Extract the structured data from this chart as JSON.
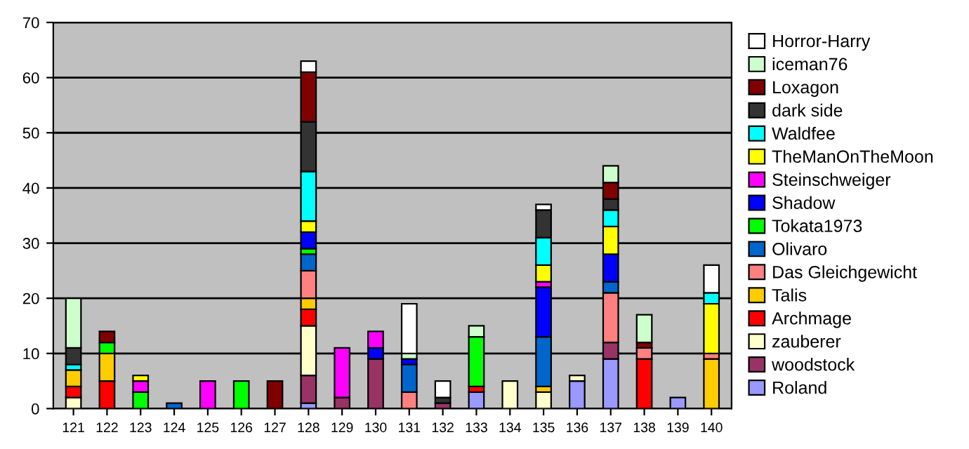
{
  "chart_data": {
    "type": "bar",
    "stacked": true,
    "grid": "y",
    "legend": "right",
    "categories": [
      "121",
      "122",
      "123",
      "124",
      "125",
      "126",
      "127",
      "128",
      "129",
      "130",
      "131",
      "132",
      "133",
      "134",
      "135",
      "136",
      "137",
      "138",
      "139",
      "140"
    ],
    "ylim": [
      0,
      70
    ],
    "yticks": [
      0,
      10,
      20,
      30,
      40,
      50,
      60,
      70
    ],
    "series": [
      {
        "name": "Roland",
        "color": "#9999ff",
        "values": [
          0,
          0,
          0,
          0,
          0,
          0,
          0,
          1,
          0,
          0,
          0,
          0,
          3,
          0,
          0,
          5,
          9,
          0,
          2,
          0
        ]
      },
      {
        "name": "woodstock",
        "color": "#993366",
        "values": [
          0,
          0,
          0,
          0,
          0,
          0,
          0,
          5,
          2,
          9,
          0,
          1,
          0,
          0,
          0,
          0,
          3,
          0,
          0,
          0
        ]
      },
      {
        "name": "zauberer",
        "color": "#ffffcc",
        "values": [
          2,
          0,
          0,
          0,
          0,
          0,
          0,
          9,
          0,
          0,
          0,
          0,
          0,
          5,
          3,
          1,
          0,
          0,
          0,
          0
        ]
      },
      {
        "name": "Archmage",
        "color": "#ff0000",
        "values": [
          2,
          5,
          0,
          0,
          0,
          0,
          0,
          3,
          0,
          0,
          0,
          0,
          1,
          0,
          0,
          0,
          0,
          9,
          0,
          0
        ]
      },
      {
        "name": "Talis",
        "color": "#ffcc00",
        "values": [
          3,
          5,
          0,
          0,
          0,
          0,
          0,
          2,
          0,
          0,
          0,
          0,
          0,
          0,
          1,
          0,
          0,
          0,
          0,
          9
        ]
      },
      {
        "name": "Das Gleichgewicht",
        "color": "#ff8080",
        "values": [
          0,
          0,
          0,
          0,
          0,
          0,
          0,
          5,
          0,
          0,
          3,
          0,
          0,
          0,
          0,
          0,
          9,
          2,
          0,
          1
        ]
      },
      {
        "name": "Olivaro",
        "color": "#0066cc",
        "values": [
          0,
          0,
          0,
          1,
          0,
          0,
          0,
          3,
          0,
          0,
          5,
          0,
          0,
          0,
          9,
          0,
          2,
          0,
          0,
          0
        ]
      },
      {
        "name": "Tokata1973",
        "color": "#00ff00",
        "values": [
          0,
          2,
          3,
          0,
          0,
          5,
          0,
          1,
          0,
          0,
          0,
          0,
          9,
          0,
          0,
          0,
          0,
          0,
          0,
          0
        ]
      },
      {
        "name": "Shadow",
        "color": "#0000ff",
        "values": [
          0,
          0,
          0,
          0,
          0,
          0,
          0,
          3,
          0,
          2,
          1,
          0,
          0,
          0,
          9,
          0,
          5,
          0,
          0,
          0
        ]
      },
      {
        "name": "Steinschweiger",
        "color": "#ff00ff",
        "values": [
          0,
          0,
          2,
          0,
          5,
          0,
          0,
          0,
          9,
          3,
          0,
          0,
          0,
          0,
          1,
          0,
          0,
          0,
          0,
          0
        ]
      },
      {
        "name": "TheManOnTheMoon",
        "color": "#ffff00",
        "values": [
          0,
          0,
          1,
          0,
          0,
          0,
          0,
          2,
          0,
          0,
          0,
          0,
          0,
          0,
          3,
          0,
          5,
          0,
          0,
          9
        ]
      },
      {
        "name": "Waldfee",
        "color": "#00ffff",
        "values": [
          1,
          0,
          0,
          0,
          0,
          0,
          0,
          9,
          0,
          0,
          0,
          0,
          0,
          0,
          5,
          0,
          3,
          0,
          0,
          2
        ]
      },
      {
        "name": "dark side",
        "color": "#333333",
        "values": [
          3,
          0,
          0,
          0,
          0,
          0,
          0,
          9,
          0,
          0,
          0,
          1,
          0,
          0,
          5,
          0,
          2,
          0,
          0,
          0
        ]
      },
      {
        "name": "Loxagon",
        "color": "#800000",
        "values": [
          0,
          2,
          0,
          0,
          0,
          0,
          5,
          9,
          0,
          0,
          0,
          0,
          0,
          0,
          0,
          0,
          3,
          1,
          0,
          0
        ]
      },
      {
        "name": "iceman76",
        "color": "#ccffcc",
        "values": [
          9,
          0,
          0,
          0,
          0,
          0,
          0,
          0,
          0,
          0,
          1,
          0,
          2,
          0,
          0,
          0,
          3,
          5,
          0,
          0
        ]
      },
      {
        "name": "Horror-Harry",
        "color": "#ffffff",
        "values": [
          0,
          0,
          0,
          0,
          0,
          0,
          0,
          2,
          0,
          0,
          9,
          3,
          0,
          0,
          1,
          0,
          0,
          0,
          0,
          5
        ]
      }
    ]
  }
}
